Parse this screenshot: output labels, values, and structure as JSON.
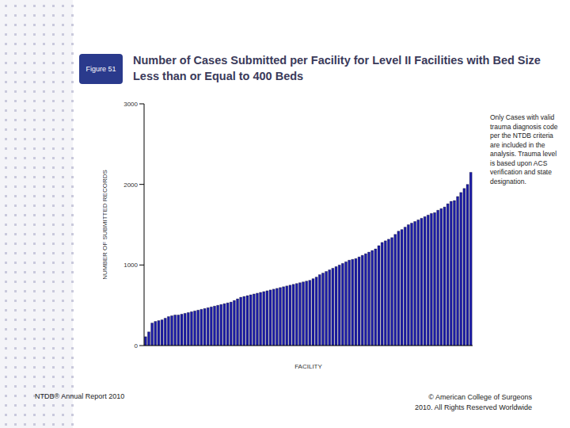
{
  "chart_data": {
    "type": "bar",
    "title": "Number of Cases Submitted per Facility for Level II Facilities with Bed Size Less than or Equal to 400 Beds",
    "x_label": "FACILITY",
    "y_label": "NUMBER OF SUBMITTED RECORDS",
    "annotations": [
      "Figure 51",
      "Only Cases with valid trauma diagnosis code per the NTDB criteria are included in the analysis. Trauma level is based upon ACS verification and state designation.",
      "NTDB® Annual Report 2010",
      "© American College of Surgeons 2010. All Rights Reserved Worldwide"
    ],
    "categories": [
      null,
      null,
      null,
      null,
      null,
      null,
      null,
      null,
      null,
      null,
      null,
      null,
      null,
      null,
      null,
      null,
      null,
      null,
      null,
      null,
      null,
      null,
      null,
      null,
      null,
      null,
      null,
      null,
      null,
      null,
      null,
      null,
      null,
      null,
      null,
      null,
      null,
      null,
      null,
      null,
      null,
      null,
      null,
      null,
      null,
      null,
      null,
      null,
      null,
      null,
      null,
      null,
      null,
      null,
      null,
      null,
      null,
      null,
      null,
      null,
      null,
      null,
      null,
      null,
      null,
      null,
      null,
      null,
      null,
      null,
      null,
      null,
      null,
      null,
      null,
      null,
      null,
      null,
      null,
      null,
      null,
      null,
      null,
      null,
      null,
      null,
      null,
      null,
      null,
      null,
      null,
      null,
      null,
      null,
      null,
      null,
      null,
      null,
      null,
      null
    ],
    "values": [
      110,
      170,
      280,
      300,
      310,
      320,
      340,
      360,
      370,
      380,
      380,
      390,
      400,
      410,
      420,
      430,
      440,
      450,
      460,
      470,
      480,
      490,
      500,
      510,
      520,
      530,
      540,
      560,
      580,
      600,
      610,
      620,
      630,
      640,
      650,
      660,
      670,
      680,
      690,
      700,
      710,
      720,
      730,
      740,
      750,
      760,
      770,
      780,
      790,
      800,
      810,
      830,
      850,
      880,
      900,
      920,
      940,
      960,
      980,
      1000,
      1020,
      1040,
      1060,
      1070,
      1080,
      1100,
      1120,
      1140,
      1160,
      1180,
      1200,
      1240,
      1280,
      1300,
      1320,
      1340,
      1380,
      1420,
      1440,
      1470,
      1500,
      1520,
      1540,
      1560,
      1580,
      1600,
      1620,
      1640,
      1650,
      1680,
      1700,
      1720,
      1760,
      1790,
      1800,
      1850,
      1900,
      1950,
      2000,
      2150
    ],
    "color": "#1c1ca8",
    "ylim": [
      0,
      3000
    ],
    "yticks": [
      0,
      1000,
      2000,
      3000
    ],
    "grid": false,
    "tick_labels": "y"
  }
}
